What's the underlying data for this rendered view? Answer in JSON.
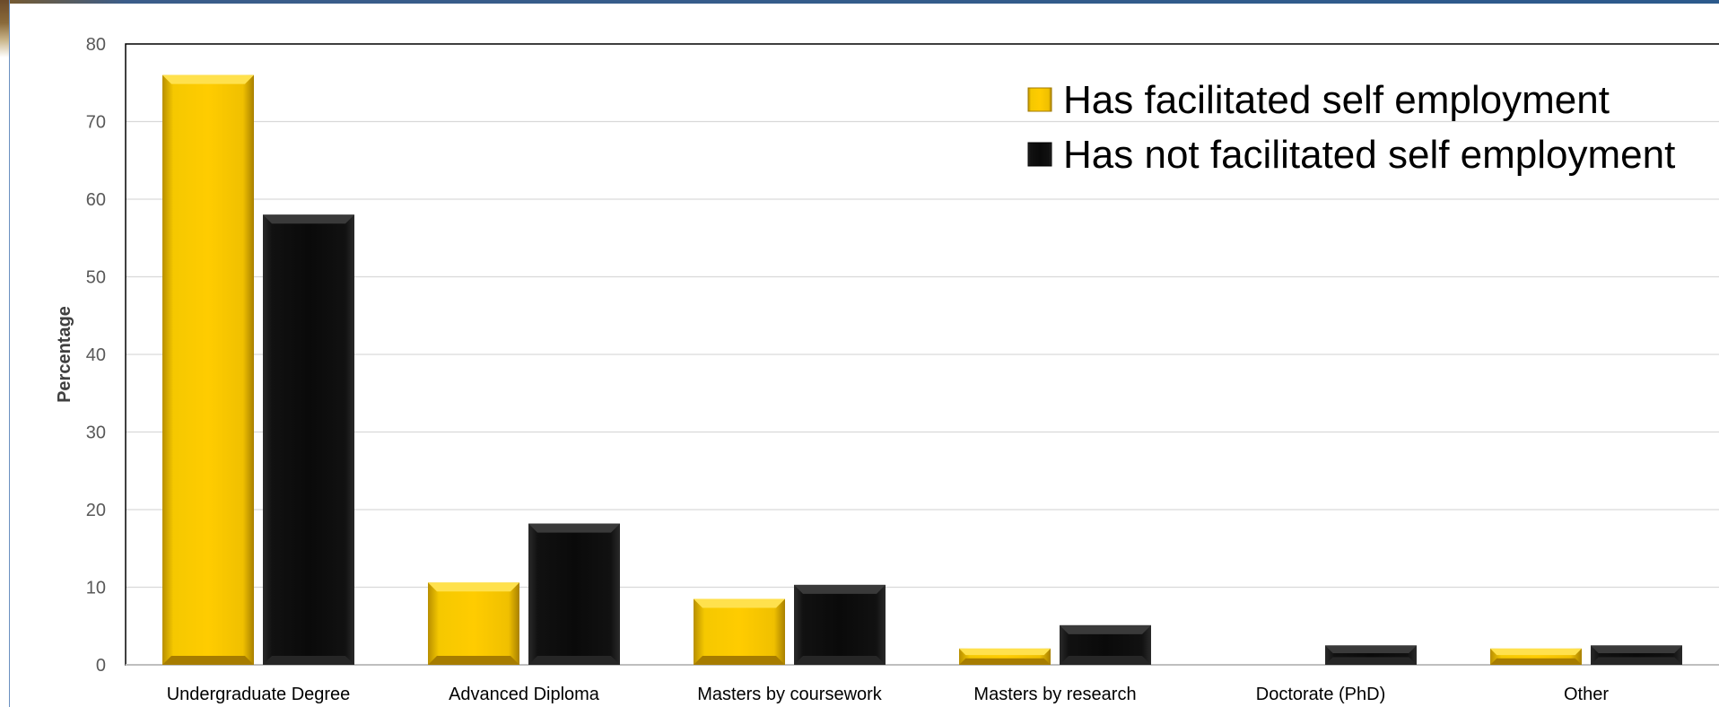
{
  "chart_data": {
    "type": "bar",
    "title": "",
    "xlabel": "",
    "ylabel": "Percentage",
    "ylim": [
      0,
      80
    ],
    "yticks": [
      0,
      10,
      20,
      30,
      40,
      50,
      60,
      70,
      80
    ],
    "grid": true,
    "legend_position": "top-right",
    "categories": [
      "Undergraduate Degree",
      "Advanced Diploma",
      "Masters by coursework",
      "Masters by research",
      "Doctorate (PhD)",
      "Other"
    ],
    "series": [
      {
        "name": "Has facilitated self employment",
        "color": "#f2c200",
        "values": [
          76,
          10.6,
          8.5,
          2.1,
          0,
          2.1
        ]
      },
      {
        "name": "Has not facilitated self employment",
        "color": "#0d0d0d",
        "values": [
          58,
          18.2,
          10.3,
          5.1,
          2.5,
          2.5
        ]
      }
    ]
  }
}
